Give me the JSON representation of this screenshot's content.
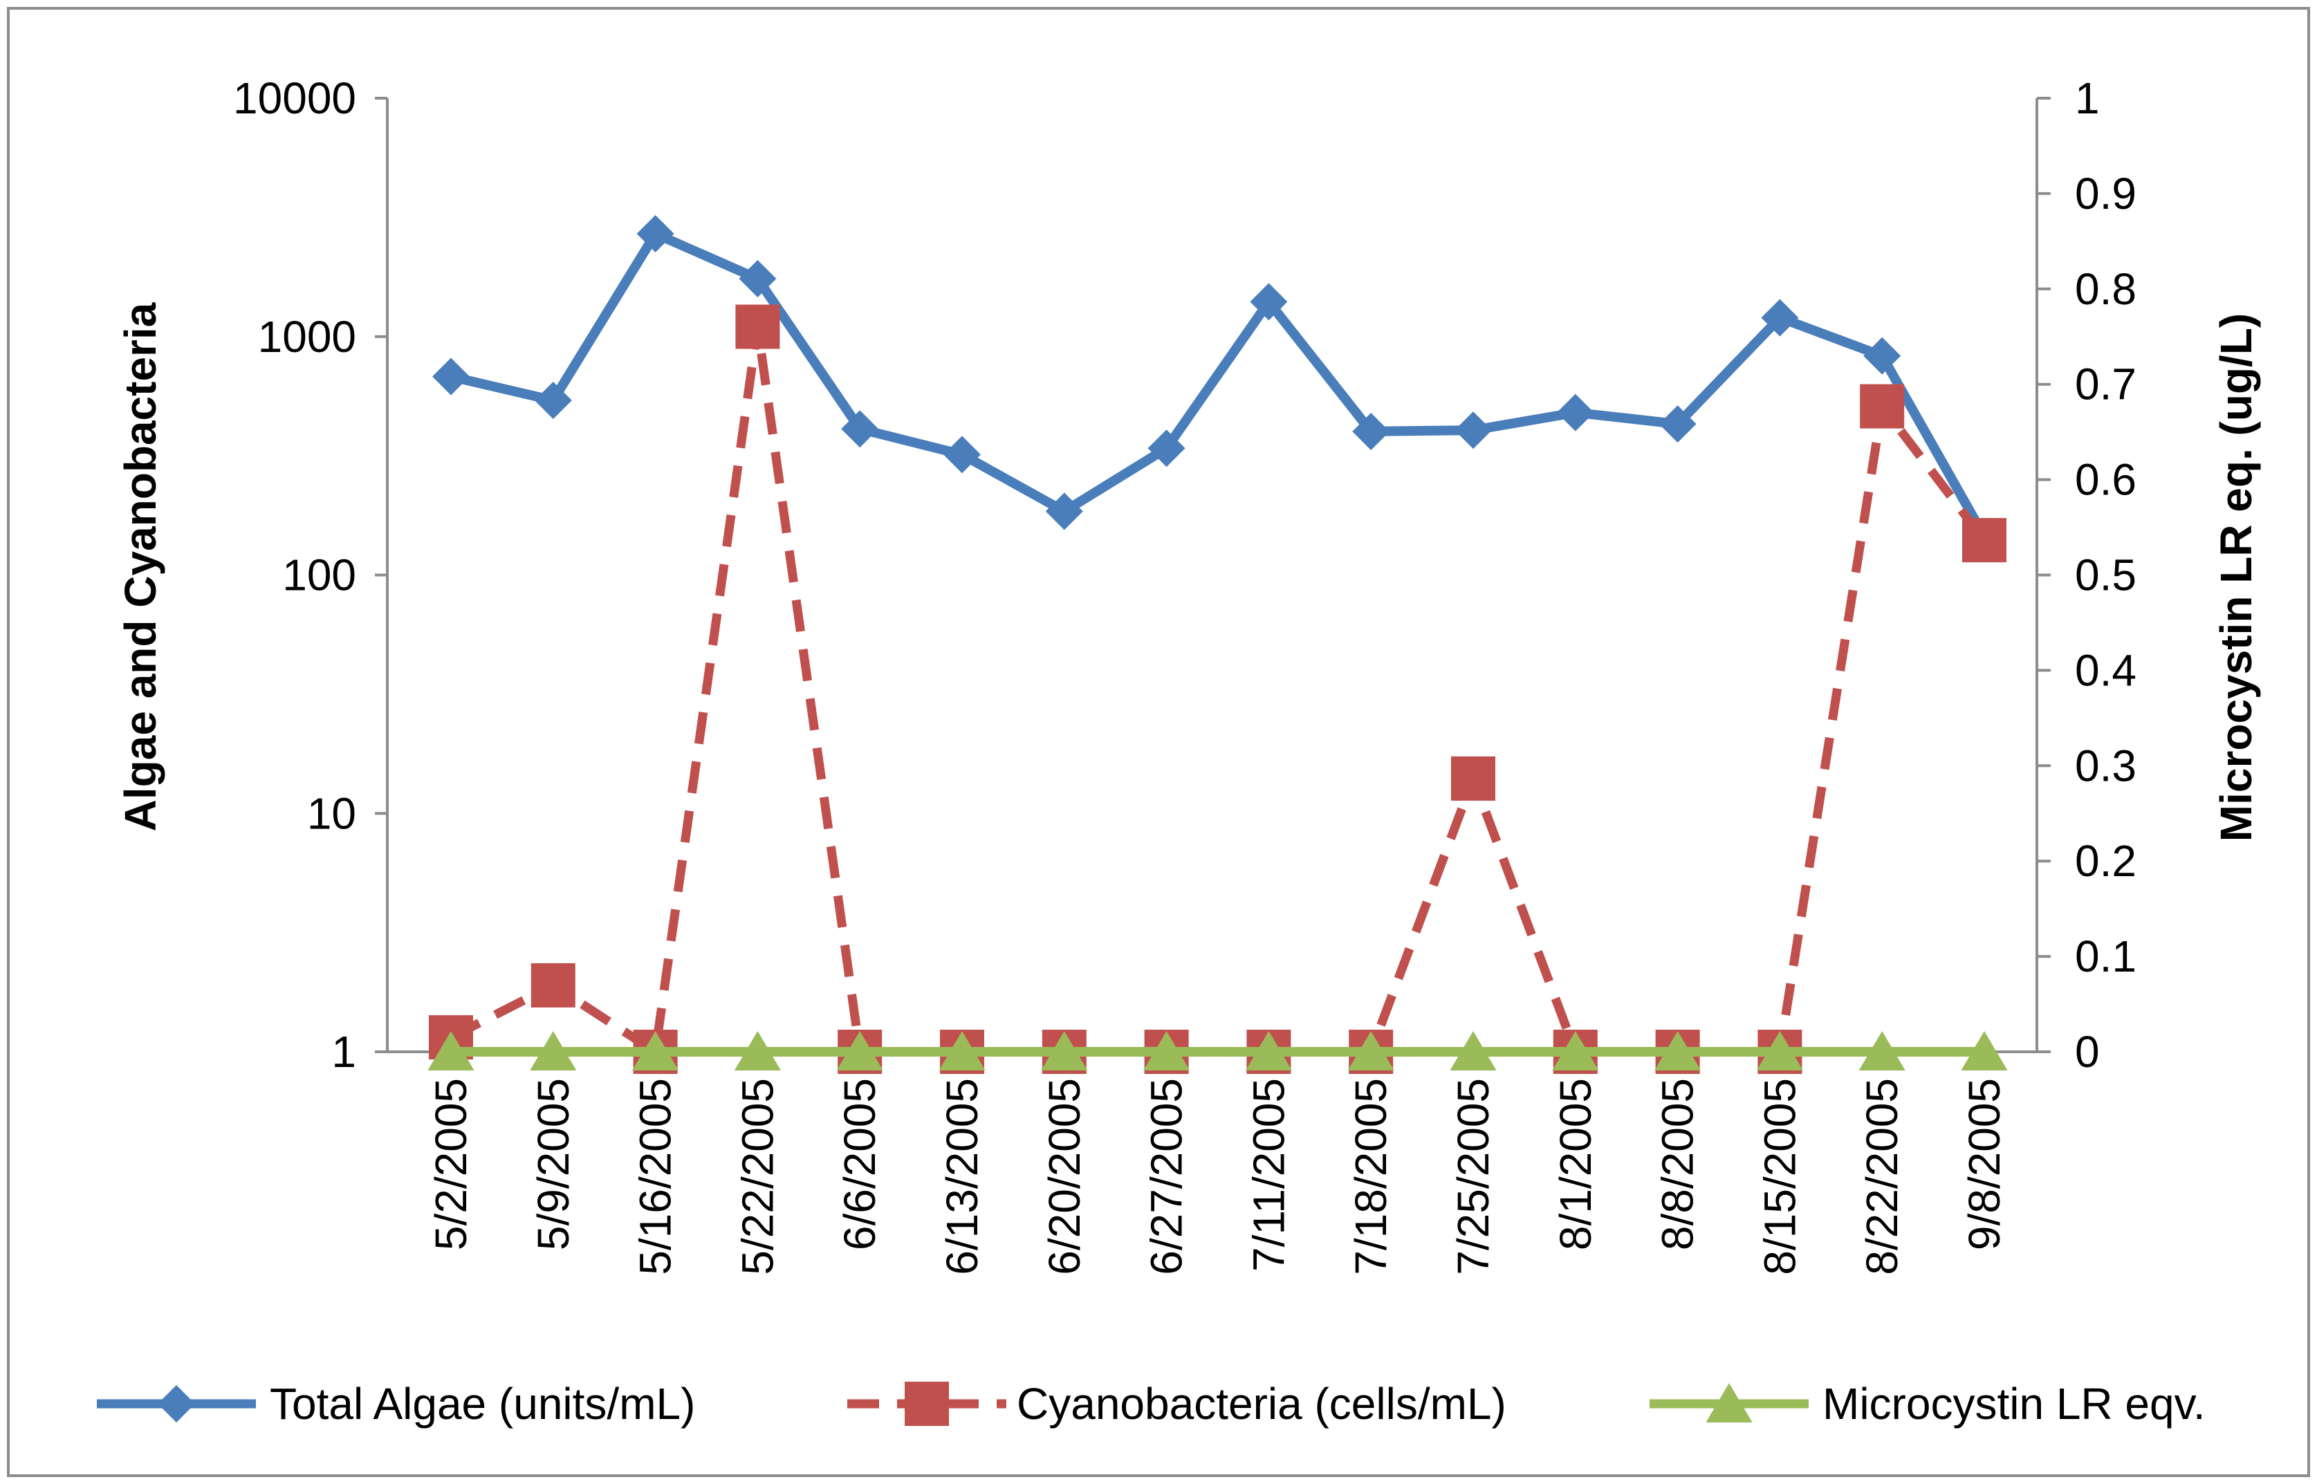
{
  "chart_data": {
    "type": "line",
    "title": "",
    "categories": [
      "5/2/2005",
      "5/9/2005",
      "5/16/2005",
      "5/22/2005",
      "6/6/2005",
      "6/13/2005",
      "6/20/2005",
      "6/27/2005",
      "7/11/2005",
      "7/18/2005",
      "7/25/2005",
      "8/1/2005",
      "8/8/2005",
      "8/15/2005",
      "8/22/2005",
      "9/8/2005"
    ],
    "xlabel": "",
    "ylabel": "Algae and Cyanobacteria",
    "ylabel_right": "Microcystin LR eq. (ug/L)",
    "y_scale": "log",
    "ylim": [
      1,
      10000
    ],
    "y_ticks": [
      "1",
      "10",
      "100",
      "1000",
      "10000"
    ],
    "y_tick_values": [
      1,
      10,
      100,
      1000,
      10000
    ],
    "y2lim": [
      0,
      1
    ],
    "y2_ticks": [
      "0",
      "0.1",
      "0.2",
      "0.3",
      "0.4",
      "0.5",
      "0.6",
      "0.7",
      "0.8",
      "0.9",
      "1"
    ],
    "y2_tick_values": [
      0,
      0.1,
      0.2,
      0.3,
      0.4,
      0.5,
      0.6,
      0.7,
      0.8,
      0.9,
      1
    ],
    "grid": false,
    "legend_position": "bottom",
    "series": [
      {
        "name": "Total Algae (units/mL)",
        "axis": "left",
        "color": "#4a7ebb",
        "line_style": "solid",
        "marker": "diamond",
        "values": [
          680,
          540,
          2700,
          1750,
          410,
          320,
          185,
          340,
          1400,
          400,
          405,
          480,
          430,
          1200,
          830,
          145
        ]
      },
      {
        "name": "Cyanobacteria (cells/mL)",
        "axis": "left",
        "color": "#c0504d",
        "line_style": "dashed",
        "marker": "square",
        "values": [
          1.15,
          1.9,
          1,
          1100,
          1,
          1,
          1,
          1,
          1,
          1,
          14,
          1,
          1,
          1,
          510,
          140
        ]
      },
      {
        "name": "Microcystin LR eqv.",
        "axis": "right",
        "color": "#9bbb59",
        "line_style": "solid",
        "marker": "triangle",
        "values": [
          0,
          0,
          0,
          0,
          0,
          0,
          0,
          0,
          0,
          0,
          0,
          0,
          0,
          0,
          0,
          0
        ]
      }
    ]
  }
}
